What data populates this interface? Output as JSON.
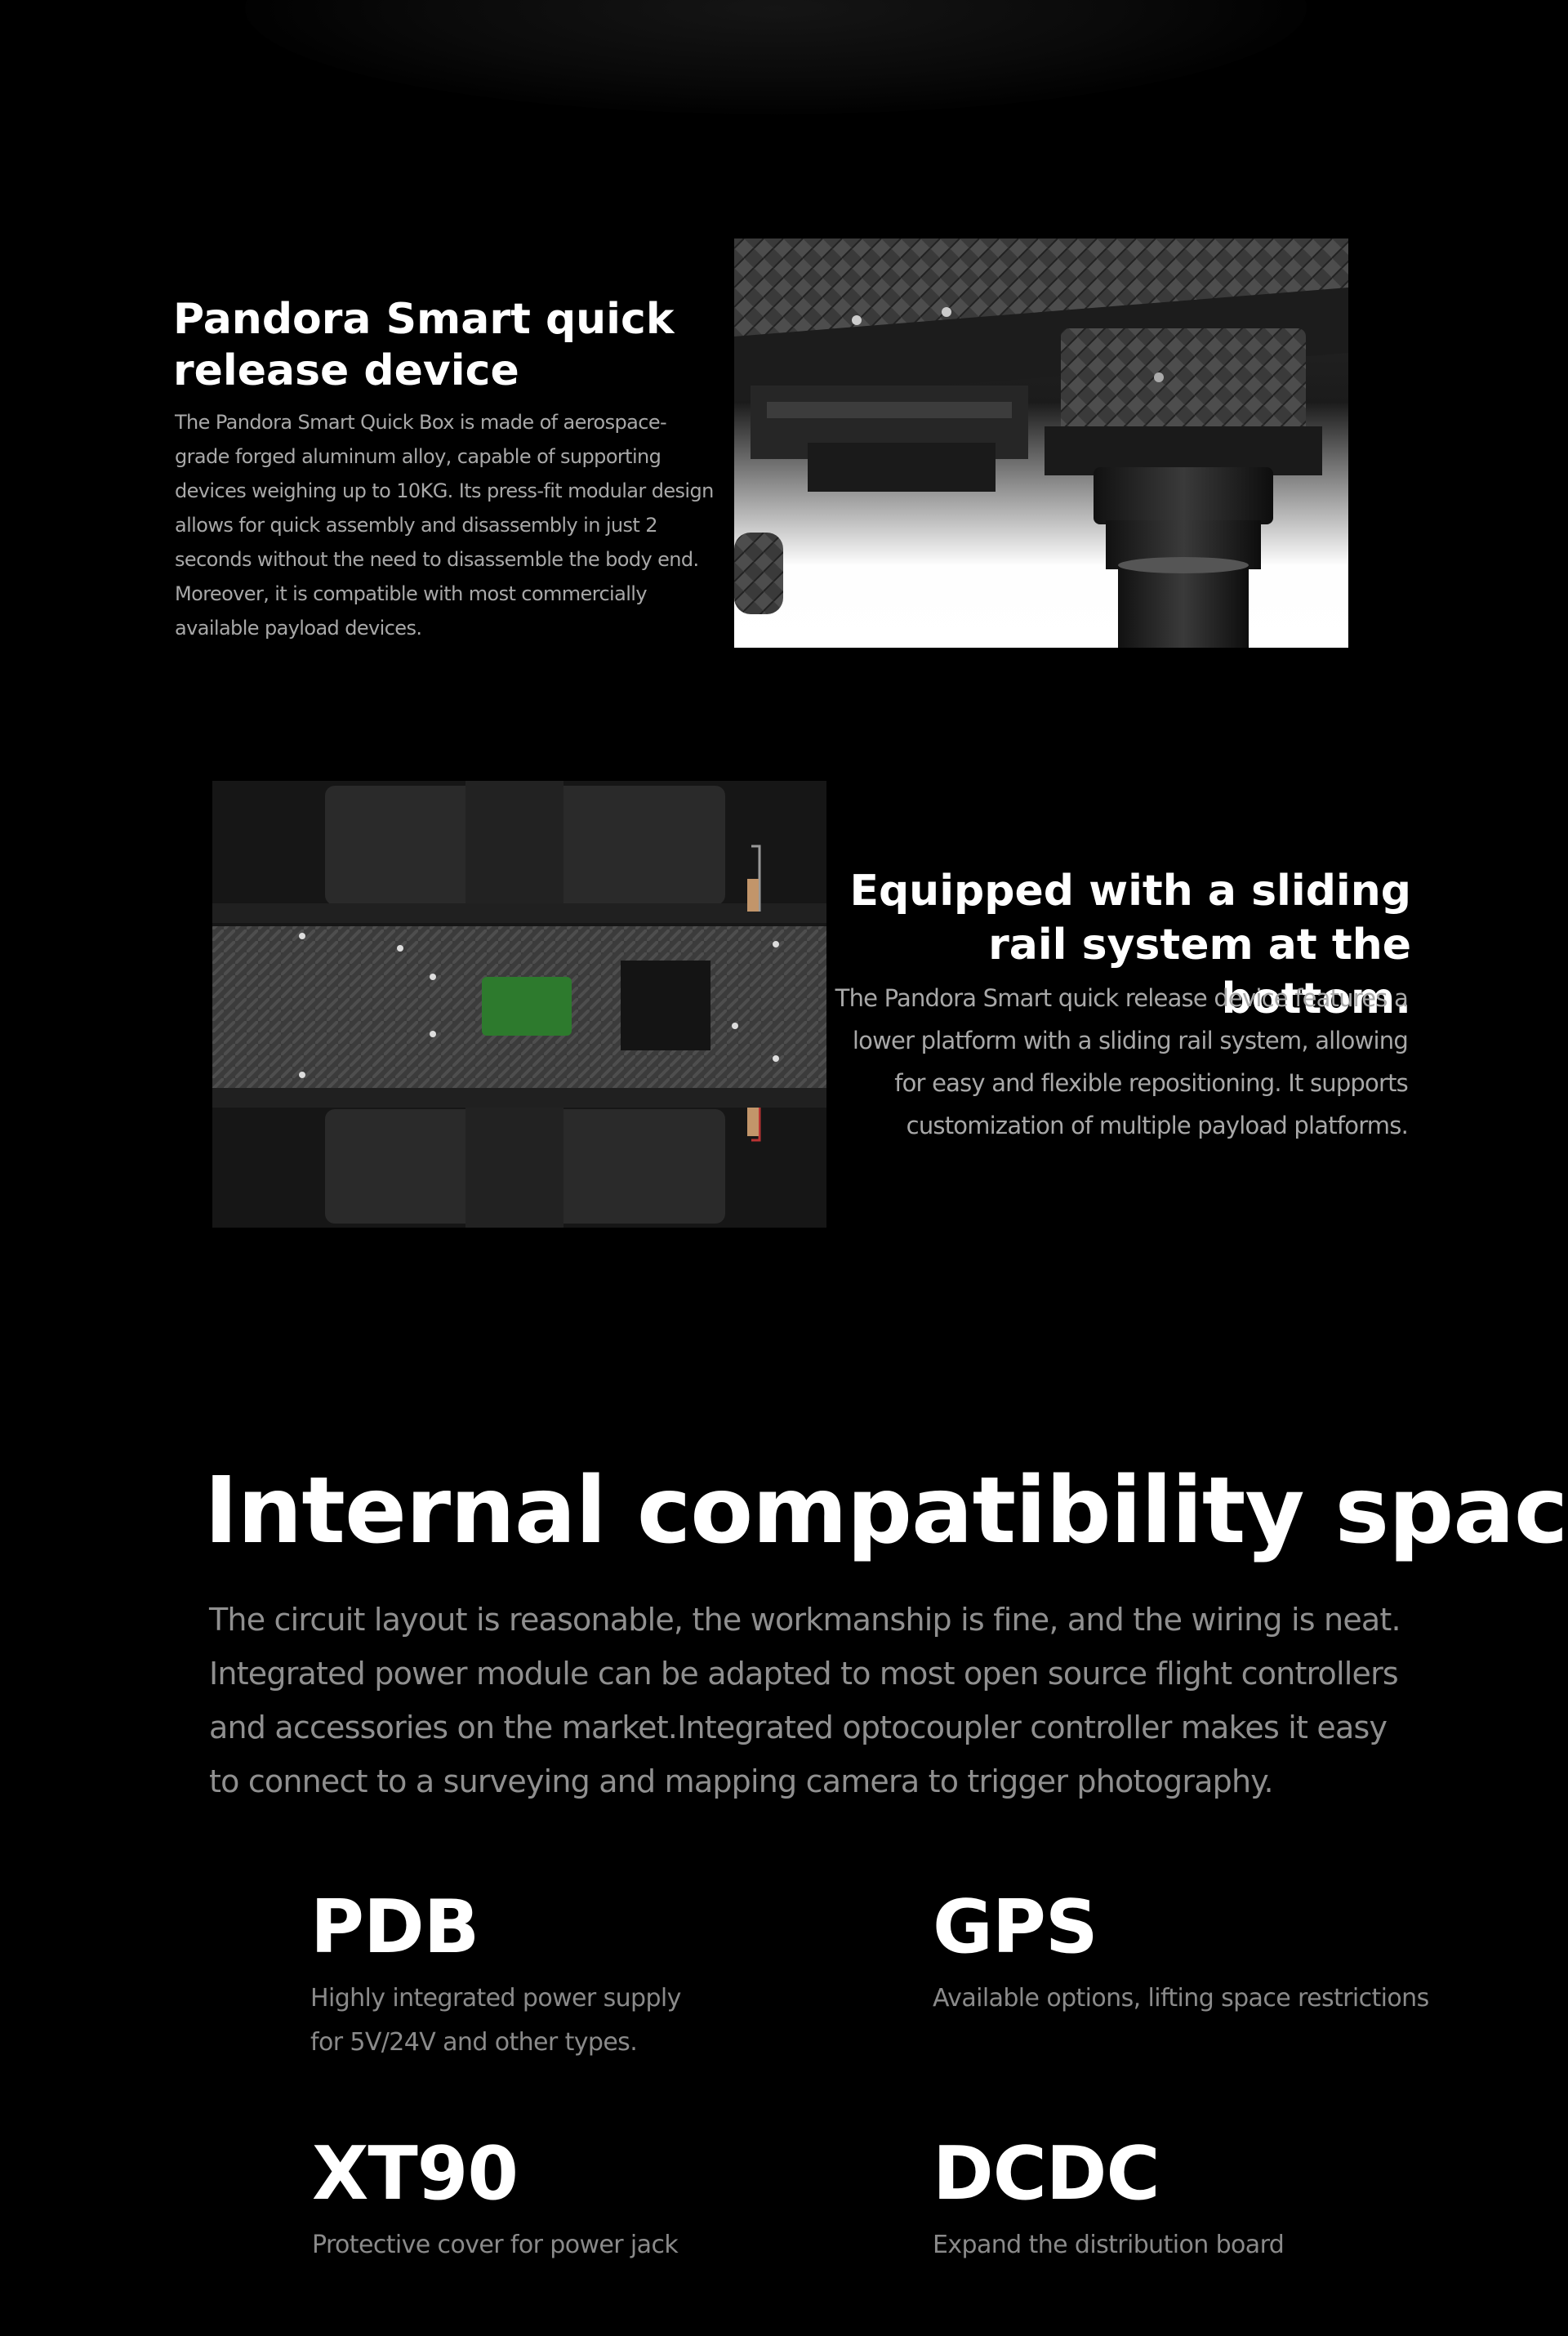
{
  "section1": {
    "title": "Pandora Smart quick release device",
    "body": "The Pandora Smart Quick Box is made of aerospace-grade forged aluminum alloy, capable of supporting devices weighing up to 10KG.  Its press-fit modular design allows for quick assembly and disassembly in just 2 seconds without the need to disassemble the body end.  Moreover, it is compatible with most commercially available payload devices."
  },
  "section2": {
    "title": "Equipped with a sliding rail system at the bottom.",
    "body": "The Pandora Smart quick release device  features a lower platform with a sliding rail system, allowing for easy and flexible repositioning. It supports customization of multiple payload platforms."
  },
  "section3": {
    "title": "Internal compatibility space",
    "body": "The circuit layout is reasonable, the workmanship is fine, and the wiring is neat. Integrated power module can be adapted to most open source flight controllers and accessories on the market.Integrated optocoupler controller makes it easy to connect to a surveying and mapping camera to trigger photography."
  },
  "features": [
    {
      "name": "PDB",
      "desc": "Highly integrated power supply for 5V/24V and other types."
    },
    {
      "name": "GPS",
      "desc": "Available options, lifting space restrictions"
    },
    {
      "name": "XT90",
      "desc": "Protective cover for power jack"
    },
    {
      "name": "DCDC",
      "desc": "Expand the distribution board"
    }
  ]
}
